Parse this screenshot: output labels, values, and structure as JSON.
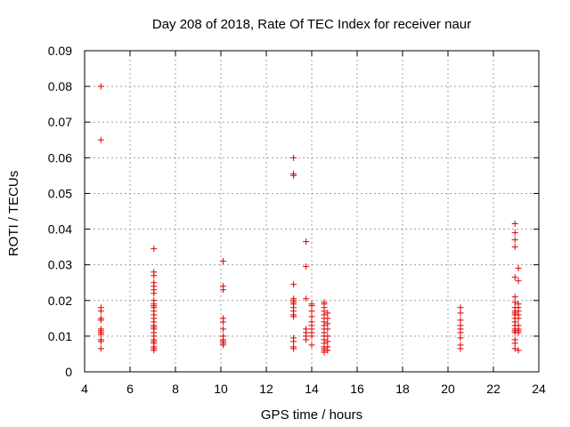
{
  "chart_data": {
    "type": "scatter",
    "title": "Day 208 of 2018, Rate Of TEC Index for receiver naur",
    "xlabel": "GPS time / hours",
    "ylabel": "ROTI / TECUs",
    "xlim": [
      4,
      24
    ],
    "ylim": [
      0,
      0.09
    ],
    "x_ticks": [
      "4",
      "6",
      "8",
      "10",
      "12",
      "14",
      "16",
      "18",
      "20",
      "22",
      "24"
    ],
    "y_ticks": [
      "0",
      "0.01",
      "0.02",
      "0.03",
      "0.04",
      "0.05",
      "0.06",
      "0.07",
      "0.08",
      "0.09"
    ],
    "grid": true,
    "marker": "+",
    "color": "#e00000",
    "series": [
      {
        "points": [
          [
            4.72,
            0.08
          ],
          [
            4.72,
            0.065
          ],
          [
            4.72,
            0.018
          ],
          [
            4.72,
            0.017
          ],
          [
            4.72,
            0.015
          ],
          [
            4.72,
            0.0145
          ],
          [
            4.72,
            0.012
          ],
          [
            4.72,
            0.0115
          ],
          [
            4.72,
            0.011
          ],
          [
            4.72,
            0.0105
          ],
          [
            4.72,
            0.009
          ],
          [
            4.72,
            0.0085
          ],
          [
            4.72,
            0.0065
          ],
          [
            7.05,
            0.0345
          ],
          [
            7.05,
            0.028
          ],
          [
            7.05,
            0.027
          ],
          [
            7.05,
            0.025
          ],
          [
            7.05,
            0.024
          ],
          [
            7.05,
            0.023
          ],
          [
            7.05,
            0.022
          ],
          [
            7.05,
            0.02
          ],
          [
            7.05,
            0.019
          ],
          [
            7.05,
            0.0185
          ],
          [
            7.05,
            0.018
          ],
          [
            7.05,
            0.017
          ],
          [
            7.05,
            0.016
          ],
          [
            7.05,
            0.015
          ],
          [
            7.05,
            0.014
          ],
          [
            7.05,
            0.013
          ],
          [
            7.05,
            0.0125
          ],
          [
            7.05,
            0.012
          ],
          [
            7.05,
            0.011
          ],
          [
            7.05,
            0.01
          ],
          [
            7.05,
            0.009
          ],
          [
            7.05,
            0.0085
          ],
          [
            7.05,
            0.008
          ],
          [
            7.05,
            0.007
          ],
          [
            7.05,
            0.0065
          ],
          [
            7.05,
            0.006
          ],
          [
            10.1,
            0.031
          ],
          [
            10.1,
            0.024
          ],
          [
            10.1,
            0.023
          ],
          [
            10.1,
            0.015
          ],
          [
            10.1,
            0.014
          ],
          [
            10.1,
            0.012
          ],
          [
            10.1,
            0.01
          ],
          [
            10.1,
            0.009
          ],
          [
            10.1,
            0.0085
          ],
          [
            10.1,
            0.008
          ],
          [
            10.1,
            0.0075
          ],
          [
            13.2,
            0.06
          ],
          [
            13.2,
            0.0555
          ],
          [
            13.2,
            0.055
          ],
          [
            13.2,
            0.0245
          ],
          [
            13.2,
            0.0205
          ],
          [
            13.2,
            0.02
          ],
          [
            13.2,
            0.0195
          ],
          [
            13.2,
            0.019
          ],
          [
            13.2,
            0.018
          ],
          [
            13.2,
            0.017
          ],
          [
            13.2,
            0.016
          ],
          [
            13.2,
            0.0155
          ],
          [
            13.2,
            0.0095
          ],
          [
            13.2,
            0.0085
          ],
          [
            13.2,
            0.007
          ],
          [
            13.2,
            0.0065
          ],
          [
            13.75,
            0.0365
          ],
          [
            13.75,
            0.0295
          ],
          [
            13.75,
            0.0205
          ],
          [
            13.75,
            0.012
          ],
          [
            13.75,
            0.011
          ],
          [
            13.75,
            0.01
          ],
          [
            13.75,
            0.009
          ],
          [
            14.0,
            0.019
          ],
          [
            14.0,
            0.0185
          ],
          [
            14.0,
            0.017
          ],
          [
            14.0,
            0.0155
          ],
          [
            14.0,
            0.014
          ],
          [
            14.0,
            0.013
          ],
          [
            14.0,
            0.012
          ],
          [
            14.0,
            0.011
          ],
          [
            14.0,
            0.01
          ],
          [
            14.0,
            0.0075
          ],
          [
            14.55,
            0.0195
          ],
          [
            14.55,
            0.019
          ],
          [
            14.55,
            0.018
          ],
          [
            14.55,
            0.017
          ],
          [
            14.55,
            0.016
          ],
          [
            14.55,
            0.015
          ],
          [
            14.55,
            0.014
          ],
          [
            14.55,
            0.013
          ],
          [
            14.55,
            0.012
          ],
          [
            14.55,
            0.011
          ],
          [
            14.55,
            0.01
          ],
          [
            14.55,
            0.009
          ],
          [
            14.55,
            0.008
          ],
          [
            14.55,
            0.007
          ],
          [
            14.55,
            0.0065
          ],
          [
            14.55,
            0.006
          ],
          [
            14.55,
            0.0055
          ],
          [
            14.7,
            0.0165
          ],
          [
            14.7,
            0.015
          ],
          [
            14.7,
            0.0135
          ],
          [
            14.7,
            0.012
          ],
          [
            14.7,
            0.01
          ],
          [
            14.7,
            0.0085
          ],
          [
            14.7,
            0.007
          ],
          [
            14.7,
            0.006
          ],
          [
            20.55,
            0.018
          ],
          [
            20.55,
            0.0165
          ],
          [
            20.55,
            0.0145
          ],
          [
            20.55,
            0.013
          ],
          [
            20.55,
            0.012
          ],
          [
            20.55,
            0.011
          ],
          [
            20.55,
            0.0095
          ],
          [
            20.55,
            0.0075
          ],
          [
            20.55,
            0.0065
          ],
          [
            22.95,
            0.0415
          ],
          [
            22.95,
            0.039
          ],
          [
            22.95,
            0.037
          ],
          [
            22.95,
            0.035
          ],
          [
            22.95,
            0.0265
          ],
          [
            22.95,
            0.021
          ],
          [
            22.95,
            0.0195
          ],
          [
            22.95,
            0.018
          ],
          [
            22.95,
            0.017
          ],
          [
            22.95,
            0.0165
          ],
          [
            22.95,
            0.016
          ],
          [
            22.95,
            0.015
          ],
          [
            22.95,
            0.014
          ],
          [
            22.95,
            0.013
          ],
          [
            22.95,
            0.012
          ],
          [
            22.95,
            0.0115
          ],
          [
            22.95,
            0.011
          ],
          [
            22.95,
            0.009
          ],
          [
            22.95,
            0.008
          ],
          [
            22.95,
            0.0065
          ],
          [
            23.1,
            0.029
          ],
          [
            23.1,
            0.0255
          ],
          [
            23.1,
            0.019
          ],
          [
            23.1,
            0.018
          ],
          [
            23.1,
            0.017
          ],
          [
            23.1,
            0.016
          ],
          [
            23.1,
            0.015
          ],
          [
            23.1,
            0.013
          ],
          [
            23.1,
            0.012
          ],
          [
            23.1,
            0.0115
          ],
          [
            23.1,
            0.011
          ],
          [
            23.1,
            0.006
          ]
        ]
      }
    ]
  }
}
